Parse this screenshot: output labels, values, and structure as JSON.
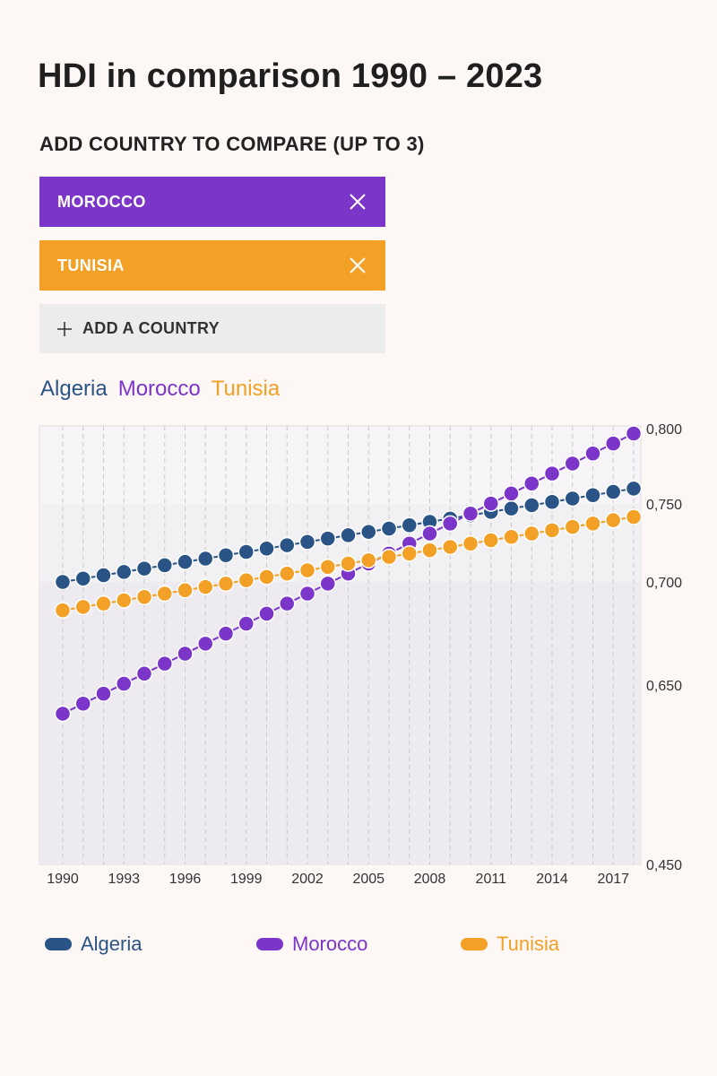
{
  "title": "HDI in comparison 1990 – 2023",
  "compare": {
    "label": "ADD COUNTRY TO COMPARE (UP TO 3)",
    "selected": [
      {
        "name": "MOROCCO",
        "color": "#7b35c9"
      },
      {
        "name": "TUNISIA",
        "color": "#f2a026"
      }
    ],
    "add_label": "ADD A COUNTRY"
  },
  "colors": {
    "algeria": "#2a5485",
    "morocco": "#7b35c9",
    "tunisia": "#f2a026"
  },
  "chart_data": {
    "type": "line",
    "title": "HDI in comparison 1990 – 2023",
    "x": [
      1990,
      1991,
      1992,
      1993,
      1994,
      1995,
      1996,
      1997,
      1998,
      1999,
      2000,
      2001,
      2002,
      2003,
      2004,
      2005,
      2006,
      2007,
      2008,
      2009,
      2010,
      2011,
      2012,
      2013,
      2014,
      2015,
      2016,
      2017,
      2018
    ],
    "x_tick_labels": [
      "1990",
      "1993",
      "1996",
      "1999",
      "2002",
      "2005",
      "2008",
      "2011",
      "2014",
      "2017"
    ],
    "y_tick_labels": [
      "0,800",
      "0,750",
      "0,700",
      "0,650",
      "0,450"
    ],
    "series": [
      {
        "name": "Algeria",
        "color": "#2a5485",
        "values": [
          0.7,
          0.702,
          0.704,
          0.706,
          0.708,
          0.71,
          0.712,
          0.714,
          0.716,
          0.718,
          0.72,
          0.722,
          0.724,
          0.726,
          0.728,
          0.73,
          0.732,
          0.734,
          0.736,
          0.738,
          0.74,
          0.742,
          0.744,
          0.746,
          0.748,
          0.75,
          0.752,
          0.754,
          0.756
        ]
      },
      {
        "name": "Morocco",
        "color": "#7b35c9",
        "values": [
          0.621,
          0.627,
          0.633,
          0.639,
          0.645,
          0.651,
          0.657,
          0.663,
          0.669,
          0.675,
          0.681,
          0.687,
          0.693,
          0.699,
          0.705,
          0.711,
          0.717,
          0.723,
          0.729,
          0.735,
          0.741,
          0.747,
          0.753,
          0.759,
          0.765,
          0.771,
          0.777,
          0.783,
          0.789
        ]
      },
      {
        "name": "Tunisia",
        "color": "#f2a026",
        "values": [
          0.683,
          0.685,
          0.687,
          0.689,
          0.691,
          0.693,
          0.695,
          0.697,
          0.699,
          0.701,
          0.703,
          0.705,
          0.707,
          0.709,
          0.711,
          0.713,
          0.715,
          0.717,
          0.719,
          0.721,
          0.723,
          0.725,
          0.727,
          0.729,
          0.731,
          0.733,
          0.735,
          0.737,
          0.739
        ]
      }
    ],
    "legend": [
      "Algeria",
      "Morocco",
      "Tunisia"
    ],
    "legend_position": "bottom",
    "grid": true
  }
}
